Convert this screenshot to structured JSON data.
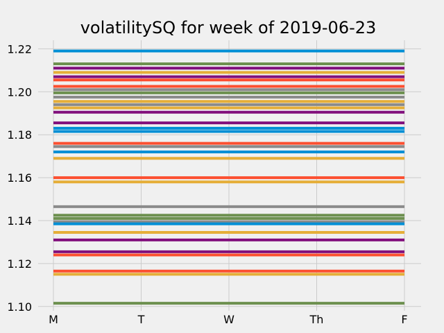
{
  "chart_data": {
    "type": "line",
    "title": "volatilitySQ for week of 2019-06-23",
    "xlabel": "",
    "ylabel": "",
    "categories": [
      "M",
      "T",
      "W",
      "Th",
      "F"
    ],
    "ylim": [
      1.098,
      1.224
    ],
    "yticks": [
      "1.10",
      "1.12",
      "1.14",
      "1.16",
      "1.18",
      "1.20",
      "1.22"
    ],
    "ytick_values": [
      1.1,
      1.12,
      1.14,
      1.16,
      1.18,
      1.2,
      1.22
    ],
    "grid": true,
    "legend": "none",
    "palette": [
      "#008fd5",
      "#fc4f30",
      "#e5ae38",
      "#6d904f",
      "#8b8b8b",
      "#810f7c"
    ],
    "series": [
      {
        "values": [
          1.219,
          1.219,
          1.219,
          1.219,
          1.219
        ],
        "color": "#008fd5"
      },
      {
        "values": [
          1.213,
          1.213,
          1.213,
          1.213,
          1.213
        ],
        "color": "#6d904f"
      },
      {
        "values": [
          1.211,
          1.211,
          1.211,
          1.211,
          1.211
        ],
        "color": "#810f7c"
      },
      {
        "values": [
          1.209,
          1.209,
          1.209,
          1.209,
          1.209
        ],
        "color": "#e5ae38"
      },
      {
        "values": [
          1.207,
          1.207,
          1.207,
          1.207,
          1.207
        ],
        "color": "#810f7c"
      },
      {
        "values": [
          1.2055,
          1.2055,
          1.2055,
          1.2055,
          1.2055
        ],
        "color": "#fc4f30"
      },
      {
        "values": [
          1.2025,
          1.2025,
          1.2025,
          1.2025,
          1.2025
        ],
        "color": "#fc4f30"
      },
      {
        "values": [
          1.201,
          1.201,
          1.201,
          1.201,
          1.201
        ],
        "color": "#8b8b8b"
      },
      {
        "values": [
          1.1995,
          1.1995,
          1.1995,
          1.1995,
          1.1995
        ],
        "color": "#6d904f"
      },
      {
        "values": [
          1.1975,
          1.1975,
          1.1975,
          1.1975,
          1.1975
        ],
        "color": "#8b8b8b"
      },
      {
        "values": [
          1.1955,
          1.1955,
          1.1955,
          1.1955,
          1.1955
        ],
        "color": "#e5ae38"
      },
      {
        "values": [
          1.194,
          1.194,
          1.194,
          1.194,
          1.194
        ],
        "color": "#8b8b8b"
      },
      {
        "values": [
          1.1925,
          1.1925,
          1.1925,
          1.1925,
          1.1925
        ],
        "color": "#e5ae38"
      },
      {
        "values": [
          1.1905,
          1.1905,
          1.1905,
          1.1905,
          1.1905
        ],
        "color": "#810f7c"
      },
      {
        "values": [
          1.1855,
          1.1855,
          1.1855,
          1.1855,
          1.1855
        ],
        "color": "#810f7c"
      },
      {
        "values": [
          1.183,
          1.183,
          1.183,
          1.183,
          1.183
        ],
        "color": "#008fd5"
      },
      {
        "values": [
          1.1815,
          1.1815,
          1.1815,
          1.1815,
          1.1815
        ],
        "color": "#008fd5"
      },
      {
        "values": [
          1.176,
          1.176,
          1.176,
          1.176,
          1.176
        ],
        "color": "#fc4f30"
      },
      {
        "values": [
          1.1745,
          1.1745,
          1.1745,
          1.1745,
          1.1745
        ],
        "color": "#8b8b8b"
      },
      {
        "values": [
          1.172,
          1.172,
          1.172,
          1.172,
          1.172
        ],
        "color": "#008fd5"
      },
      {
        "values": [
          1.169,
          1.169,
          1.169,
          1.169,
          1.169
        ],
        "color": "#e5ae38"
      },
      {
        "values": [
          1.16,
          1.16,
          1.16,
          1.16,
          1.16
        ],
        "color": "#fc4f30"
      },
      {
        "values": [
          1.158,
          1.158,
          1.158,
          1.158,
          1.158
        ],
        "color": "#e5ae38"
      },
      {
        "values": [
          1.1465,
          1.1465,
          1.1465,
          1.1465,
          1.1465
        ],
        "color": "#8b8b8b"
      },
      {
        "values": [
          1.1425,
          1.1425,
          1.1425,
          1.1425,
          1.1425
        ],
        "color": "#6d904f"
      },
      {
        "values": [
          1.141,
          1.141,
          1.141,
          1.141,
          1.141
        ],
        "color": "#6d904f"
      },
      {
        "values": [
          1.1395,
          1.1395,
          1.1395,
          1.1395,
          1.1395
        ],
        "color": "#8b8b8b"
      },
      {
        "values": [
          1.1385,
          1.1385,
          1.1385,
          1.1385,
          1.1385
        ],
        "color": "#008fd5"
      },
      {
        "values": [
          1.1345,
          1.1345,
          1.1345,
          1.1345,
          1.1345
        ],
        "color": "#e5ae38"
      },
      {
        "values": [
          1.131,
          1.131,
          1.131,
          1.131,
          1.131
        ],
        "color": "#810f7c"
      },
      {
        "values": [
          1.1255,
          1.1255,
          1.1255,
          1.1255,
          1.1255
        ],
        "color": "#810f7c"
      },
      {
        "values": [
          1.124,
          1.124,
          1.124,
          1.124,
          1.124
        ],
        "color": "#fc4f30"
      },
      {
        "values": [
          1.1165,
          1.1165,
          1.1165,
          1.1165,
          1.1165
        ],
        "color": "#fc4f30"
      },
      {
        "values": [
          1.115,
          1.115,
          1.115,
          1.115,
          1.115
        ],
        "color": "#e5ae38"
      },
      {
        "values": [
          1.1015,
          1.1015,
          1.1015,
          1.1015,
          1.1015
        ],
        "color": "#6d904f"
      }
    ]
  }
}
